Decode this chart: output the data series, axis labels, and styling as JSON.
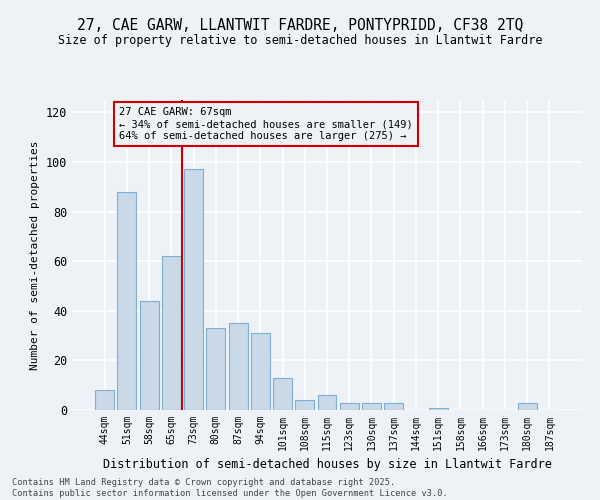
{
  "title1": "27, CAE GARW, LLANTWIT FARDRE, PONTYPRIDD, CF38 2TQ",
  "title2": "Size of property relative to semi-detached houses in Llantwit Fardre",
  "xlabel": "Distribution of semi-detached houses by size in Llantwit Fardre",
  "ylabel": "Number of semi-detached properties",
  "categories": [
    "44sqm",
    "51sqm",
    "58sqm",
    "65sqm",
    "73sqm",
    "80sqm",
    "87sqm",
    "94sqm",
    "101sqm",
    "108sqm",
    "115sqm",
    "123sqm",
    "130sqm",
    "137sqm",
    "144sqm",
    "151sqm",
    "158sqm",
    "166sqm",
    "173sqm",
    "180sqm",
    "187sqm"
  ],
  "values": [
    8,
    88,
    44,
    62,
    97,
    33,
    35,
    31,
    13,
    4,
    6,
    3,
    3,
    3,
    0,
    1,
    0,
    0,
    0,
    3,
    0
  ],
  "bar_color": "#c9d9e8",
  "bar_edge_color": "#7fafd4",
  "vline_x": 3.5,
  "vline_color": "#cc0000",
  "annotation_title": "27 CAE GARW: 67sqm",
  "annotation_line1": "← 34% of semi-detached houses are smaller (149)",
  "annotation_line2": "64% of semi-detached houses are larger (275) →",
  "annotation_box_color": "#cc0000",
  "ylim": [
    0,
    125
  ],
  "yticks": [
    0,
    20,
    40,
    60,
    80,
    100,
    120
  ],
  "footnote": "Contains HM Land Registry data © Crown copyright and database right 2025.\nContains public sector information licensed under the Open Government Licence v3.0.",
  "background_color": "#eef2f7"
}
